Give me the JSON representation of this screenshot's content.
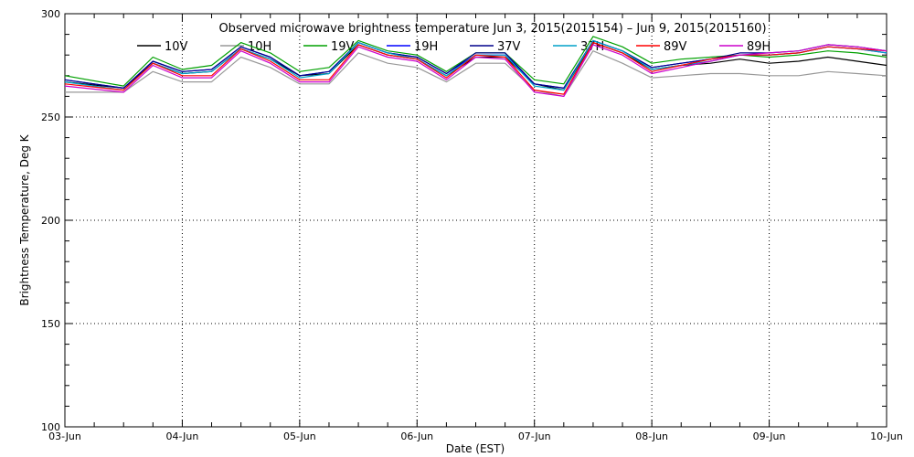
{
  "chart_data": {
    "type": "line",
    "title": "Observed microwave brightness temperature Jun  3, 2015(2015154) – Jun  9, 2015(2015160)",
    "xlabel": "Date (EST)",
    "ylabel": "Brightness Temperature, Deg K",
    "xlim": [
      "2015-06-03",
      "2015-06-10"
    ],
    "ylim": [
      100,
      300
    ],
    "x_ticks": [
      "03-Jun",
      "04-Jun",
      "05-Jun",
      "06-Jun",
      "07-Jun",
      "08-Jun",
      "09-Jun",
      "10-Jun"
    ],
    "y_ticks": [
      100,
      150,
      200,
      250,
      300
    ],
    "grid": true,
    "legend_placement": "top",
    "x_dates": [
      "2015-06-03",
      "2015-06-03 12:00",
      "2015-06-03 18:00",
      "2015-06-04 00:00",
      "2015-06-04 06:00",
      "2015-06-04 12:00",
      "2015-06-04 18:00",
      "2015-06-05 00:00",
      "2015-06-05 06:00",
      "2015-06-05 12:00",
      "2015-06-05 18:00",
      "2015-06-06 00:00",
      "2015-06-06 06:00",
      "2015-06-06 12:00",
      "2015-06-06 18:00",
      "2015-06-07 00:00",
      "2015-06-07 06:00",
      "2015-06-07 12:00",
      "2015-06-07 18:00",
      "2015-06-08 00:00",
      "2015-06-08 06:00",
      "2015-06-08 12:00",
      "2015-06-08 18:00",
      "2015-06-09 00:00",
      "2015-06-09 06:00",
      "2015-06-09 12:00",
      "2015-06-09 18:00",
      "2015-06-10 00:00"
    ],
    "series": [
      {
        "name": "10V",
        "color": "#000000",
        "values": [
          267,
          264,
          276,
          271,
          272,
          283,
          278,
          270,
          271,
          285,
          280,
          278,
          270,
          279,
          279,
          266,
          263,
          286,
          281,
          273,
          275,
          276,
          278,
          276,
          277,
          279,
          277,
          275
        ]
      },
      {
        "name": "10H",
        "color": "#999999",
        "values": [
          262,
          262,
          272,
          267,
          267,
          279,
          274,
          266,
          266,
          281,
          276,
          274,
          267,
          276,
          276,
          263,
          260,
          282,
          276,
          269,
          270,
          271,
          271,
          270,
          270,
          272,
          271,
          270
        ]
      },
      {
        "name": "19V",
        "color": "#00a000",
        "values": [
          270,
          265,
          279,
          273,
          275,
          286,
          281,
          272,
          274,
          287,
          282,
          280,
          272,
          281,
          281,
          268,
          266,
          289,
          284,
          276,
          278,
          279,
          280,
          279,
          280,
          282,
          281,
          279
        ]
      },
      {
        "name": "19H",
        "color": "#0000ff",
        "values": [
          268,
          264,
          277,
          272,
          273,
          284,
          279,
          270,
          272,
          286,
          281,
          279,
          271,
          280,
          280,
          266,
          264,
          287,
          282,
          274,
          276,
          278,
          280,
          280,
          281,
          284,
          283,
          281
        ]
      },
      {
        "name": "37V",
        "color": "#00008b",
        "values": [
          268,
          264,
          277,
          272,
          273,
          284,
          279,
          270,
          272,
          286,
          281,
          279,
          271,
          281,
          281,
          266,
          264,
          287,
          282,
          274,
          276,
          278,
          281,
          281,
          282,
          285,
          284,
          282
        ]
      },
      {
        "name": "37H",
        "color": "#00a0c8",
        "values": [
          267,
          263,
          276,
          271,
          272,
          283,
          278,
          269,
          271,
          286,
          281,
          278,
          270,
          280,
          280,
          265,
          263,
          287,
          282,
          273,
          275,
          277,
          280,
          280,
          281,
          284,
          283,
          281
        ]
      },
      {
        "name": "89V",
        "color": "#ff0000",
        "values": [
          266,
          263,
          276,
          270,
          270,
          283,
          277,
          268,
          268,
          285,
          280,
          278,
          269,
          280,
          279,
          263,
          261,
          286,
          281,
          272,
          275,
          278,
          280,
          280,
          281,
          284,
          283,
          282
        ]
      },
      {
        "name": "89H",
        "color": "#cc00cc",
        "values": [
          265,
          262,
          275,
          269,
          269,
          282,
          276,
          267,
          267,
          284,
          279,
          277,
          268,
          279,
          278,
          262,
          260,
          285,
          280,
          271,
          274,
          277,
          280,
          281,
          282,
          285,
          284,
          282
        ]
      }
    ]
  }
}
